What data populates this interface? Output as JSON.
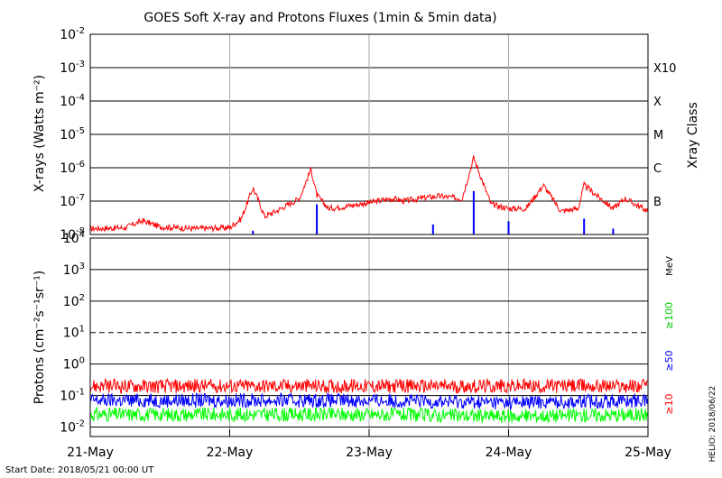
{
  "title": "GOES Soft X-ray and Protons Fluxes   (1min & 5min data)",
  "start_date": "Start Date: 2018/05/21 00:00 UT",
  "credit": "HELIO: 2018/06/22",
  "colors": {
    "xray_long": "#ff0000",
    "xray_short": "#0000ff",
    "proton_10": "#ff0000",
    "proton_50": "#0000ff",
    "proton_100": "#00ff00",
    "grid": "#000000",
    "day_grid": "#aaaaaa"
  },
  "x_ticks": [
    "21-May",
    "22-May",
    "23-May",
    "24-May",
    "25-May"
  ],
  "xray_panel": {
    "ylabel": "X-rays (Watts m⁻²)",
    "y_exponents": [
      "-2",
      "-3",
      "-4",
      "-5",
      "-6",
      "-7",
      "-8"
    ],
    "y_tick_base": "10",
    "right_title": "Xray Class",
    "classes": [
      "X10",
      "X",
      "M",
      "C",
      "B"
    ]
  },
  "proton_panel": {
    "ylabel": "Protons (cm⁻²s⁻¹sr⁻¹)",
    "y_exponents": [
      "4",
      "3",
      "2",
      "1",
      "0",
      "-1",
      "-2"
    ],
    "y_tick_base": "10",
    "unit": "MeV",
    "channels": [
      "≥100",
      "≥50",
      "≥10"
    ]
  },
  "chart_data": [
    {
      "type": "line",
      "title": "GOES Soft X-ray and Protons Fluxes   (1min & 5min data)",
      "xlabel": "",
      "ylabel": "X-rays (Watts m⁻²)",
      "yscale": "log",
      "ylim": [
        1e-08,
        0.01
      ],
      "xlim": [
        "2018-05-21",
        "2018-05-25"
      ],
      "grid": true,
      "series": [
        {
          "color": "#ff0000",
          "x": [
            "2018-05-21 00:00",
            "2018-05-21 06:00",
            "2018-05-21 09:00",
            "2018-05-21 12:00",
            "2018-05-21 18:00",
            "2018-05-22 00:00",
            "2018-05-22 02:00",
            "2018-05-22 04:00",
            "2018-05-22 05:00",
            "2018-05-22 06:00",
            "2018-05-22 08:00",
            "2018-05-22 12:00",
            "2018-05-22 14:00",
            "2018-05-22 15:00",
            "2018-05-22 17:00",
            "2018-05-22 20:00",
            "2018-05-23 00:00",
            "2018-05-23 04:00",
            "2018-05-23 06:00",
            "2018-05-23 10:00",
            "2018-05-23 12:00",
            "2018-05-23 16:00",
            "2018-05-23 18:00",
            "2018-05-23 21:00",
            "2018-05-24 00:00",
            "2018-05-24 03:00",
            "2018-05-24 06:00",
            "2018-05-24 09:00",
            "2018-05-24 12:00",
            "2018-05-24 13:00",
            "2018-05-24 18:00",
            "2018-05-24 20:00",
            "2018-05-25 00:00"
          ],
          "values": [
            1.5e-08,
            1.6e-08,
            2.6e-08,
            1.7e-08,
            1.5e-08,
            1.6e-08,
            3e-08,
            2.5e-07,
            1e-07,
            3.5e-08,
            5e-08,
            1.2e-07,
            9e-07,
            1.5e-07,
            6e-08,
            7e-08,
            9e-08,
            1.2e-07,
            1e-07,
            1.3e-07,
            1.4e-07,
            1.2e-07,
            2e-06,
            8e-08,
            6e-08,
            6e-08,
            3e-07,
            5e-08,
            6e-08,
            3e-07,
            6e-08,
            1.2e-07,
            5e-08
          ]
        },
        {
          "color": "#0000ff",
          "x": [
            "2018-05-22 04:00",
            "2018-05-22 15:00",
            "2018-05-23 11:00",
            "2018-05-23 18:00",
            "2018-05-24 00:00",
            "2018-05-24 13:00",
            "2018-05-24 18:00"
          ],
          "values": [
            1.3e-08,
            8e-08,
            2e-08,
            2e-07,
            2.5e-08,
            3e-08,
            1.5e-08
          ]
        }
      ]
    },
    {
      "type": "line",
      "xlabel": "",
      "ylabel": "Protons (cm⁻²s⁻¹sr⁻¹)",
      "yscale": "log",
      "ylim": [
        0.005,
        10000
      ],
      "xlim": [
        "2018-05-21",
        "2018-05-25"
      ],
      "x_ticks": [
        "21-May",
        "22-May",
        "23-May",
        "24-May",
        "25-May"
      ],
      "grid": true,
      "series": [
        {
          "name": "≥10",
          "color": "#ff0000",
          "x": [
            "2018-05-21",
            "2018-05-22",
            "2018-05-23",
            "2018-05-24",
            "2018-05-25"
          ],
          "values": [
            0.2,
            0.2,
            0.2,
            0.2,
            0.2
          ]
        },
        {
          "name": "≥50",
          "color": "#0000ff",
          "x": [
            "2018-05-21",
            "2018-05-22",
            "2018-05-23",
            "2018-05-24",
            "2018-05-25"
          ],
          "values": [
            0.07,
            0.07,
            0.07,
            0.06,
            0.07
          ]
        },
        {
          "name": "≥100",
          "color": "#00ff00",
          "x": [
            "2018-05-21",
            "2018-05-22",
            "2018-05-23",
            "2018-05-24",
            "2018-05-25"
          ],
          "values": [
            0.025,
            0.025,
            0.025,
            0.022,
            0.025
          ]
        }
      ],
      "annotations": [
        {
          "type": "hline",
          "value": 10,
          "style": "dashed"
        }
      ]
    }
  ]
}
